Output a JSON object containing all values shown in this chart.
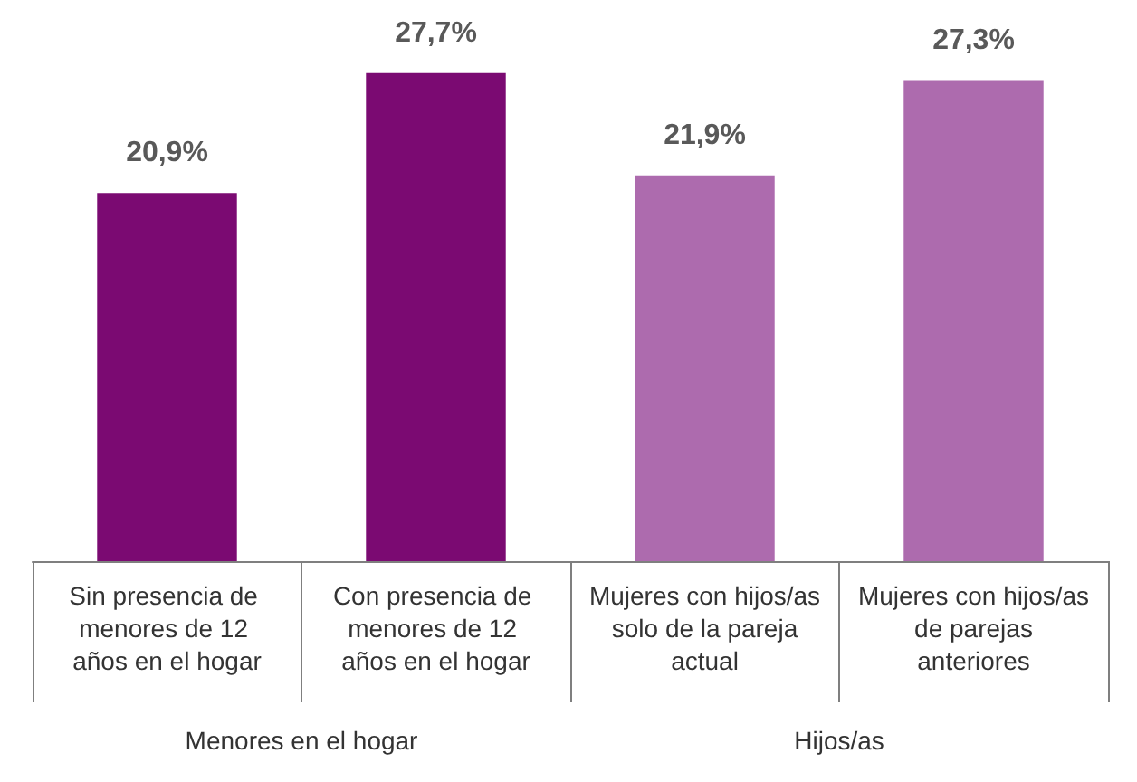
{
  "chart_data": {
    "type": "bar",
    "categories": [
      "Sin presencia de menores de 12 años en el hogar",
      "Con presencia de menores de 12 años en el hogar",
      "Mujeres con hijos/as solo de la pareja actual",
      "Mujeres con hijos/as de parejas anteriores"
    ],
    "values": [
      20.9,
      27.7,
      21.9,
      27.3
    ],
    "colors": [
      "#7b0a72",
      "#7b0a72",
      "#ad6bae",
      "#ad6bae"
    ],
    "value_labels": [
      "20,9%",
      "27,7%",
      "21,9%",
      "27,3%"
    ],
    "annotations": [
      "Menores en el hogar",
      "Hijos/as"
    ],
    "grid": false
  }
}
